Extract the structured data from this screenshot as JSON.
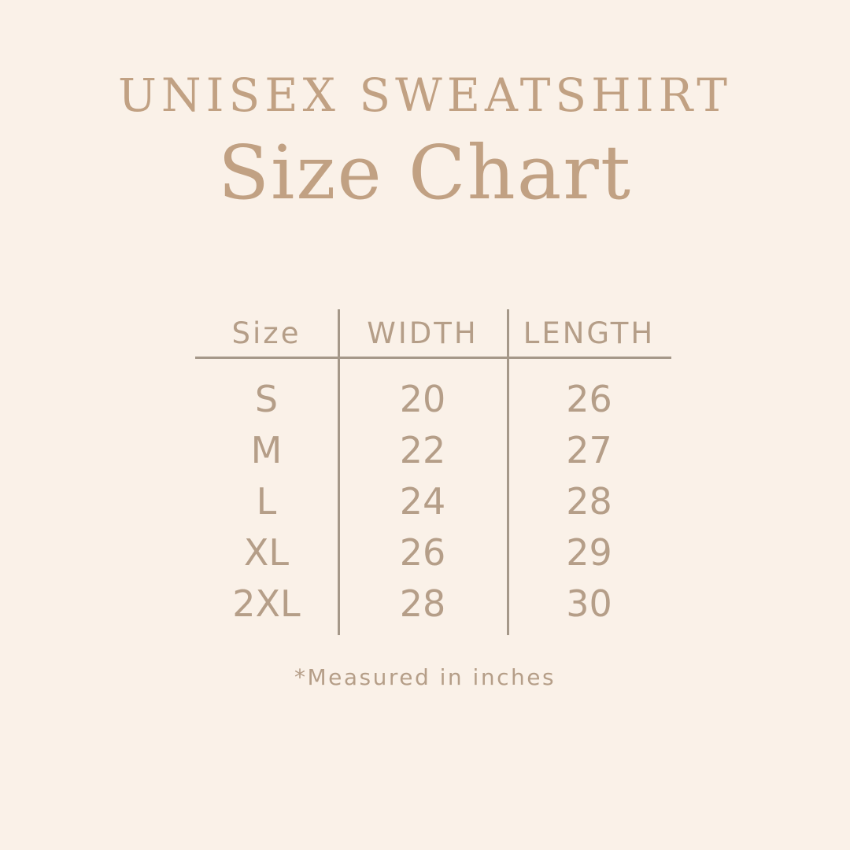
{
  "colors": {
    "background": "#faf1e8",
    "title_text": "#c1a183",
    "table_text": "#b59e88",
    "line": "#a59889"
  },
  "header": {
    "title": "UNISEX SWEATSHIRT",
    "subtitle": "Size Chart"
  },
  "chart_data": {
    "type": "table",
    "title": "UNISEX SWEATSHIRT Size Chart",
    "columns": [
      "Size",
      "WIDTH",
      "LENGTH"
    ],
    "rows": [
      [
        "S",
        "20",
        "26"
      ],
      [
        "M",
        "22",
        "27"
      ],
      [
        "L",
        "24",
        "28"
      ],
      [
        "XL",
        "26",
        "29"
      ],
      [
        "2XL",
        "28",
        "30"
      ]
    ],
    "units": "inches",
    "layout_hints": {
      "column_dividers": true,
      "header_rule": true,
      "alignment": "center"
    }
  },
  "footnote": "*Measured in inches"
}
